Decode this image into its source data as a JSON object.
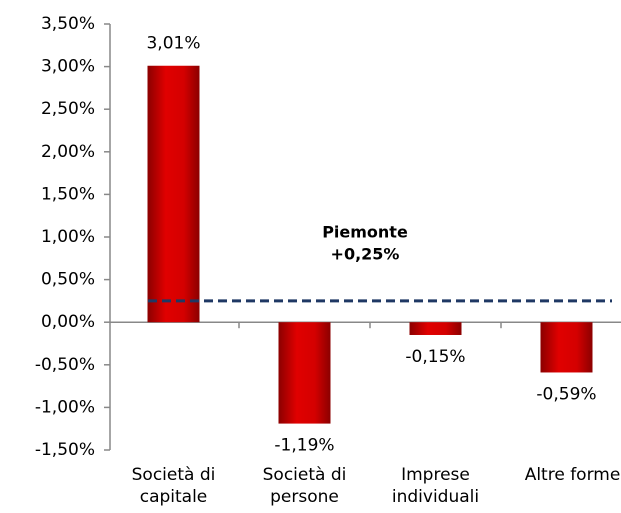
{
  "chart_data": {
    "type": "bar",
    "categories": [
      "Società di capitale",
      "Società di persone",
      "Imprese individuali",
      "Altre forme"
    ],
    "values": [
      3.01,
      -1.19,
      -0.15,
      -0.59
    ],
    "value_labels": [
      "3,01%",
      "-1,19%",
      "-0,15%",
      "-0,59%"
    ],
    "color": "#d40000",
    "ylim": [
      -1.5,
      3.5
    ],
    "yticks": [
      {
        "value": -1.5,
        "label": "-1,50%"
      },
      {
        "value": -1.0,
        "label": "-1,00%"
      },
      {
        "value": -0.5,
        "label": "-0,50%"
      },
      {
        "value": 0,
        "label": "0,00%"
      },
      {
        "value": 0.5,
        "label": "0,50%"
      },
      {
        "value": 1.0,
        "label": "1,00%"
      },
      {
        "value": 1.5,
        "label": "1,50%"
      },
      {
        "value": 2.0,
        "label": "2,00%"
      },
      {
        "value": 2.5,
        "label": "2,50%"
      },
      {
        "value": 3.0,
        "label": "3,00%"
      },
      {
        "value": 3.5,
        "label": "3,50%"
      }
    ],
    "reference_line": {
      "name": "Piemonte",
      "value": 0.25,
      "label": "+0,25%",
      "color": "#1f3864"
    }
  }
}
